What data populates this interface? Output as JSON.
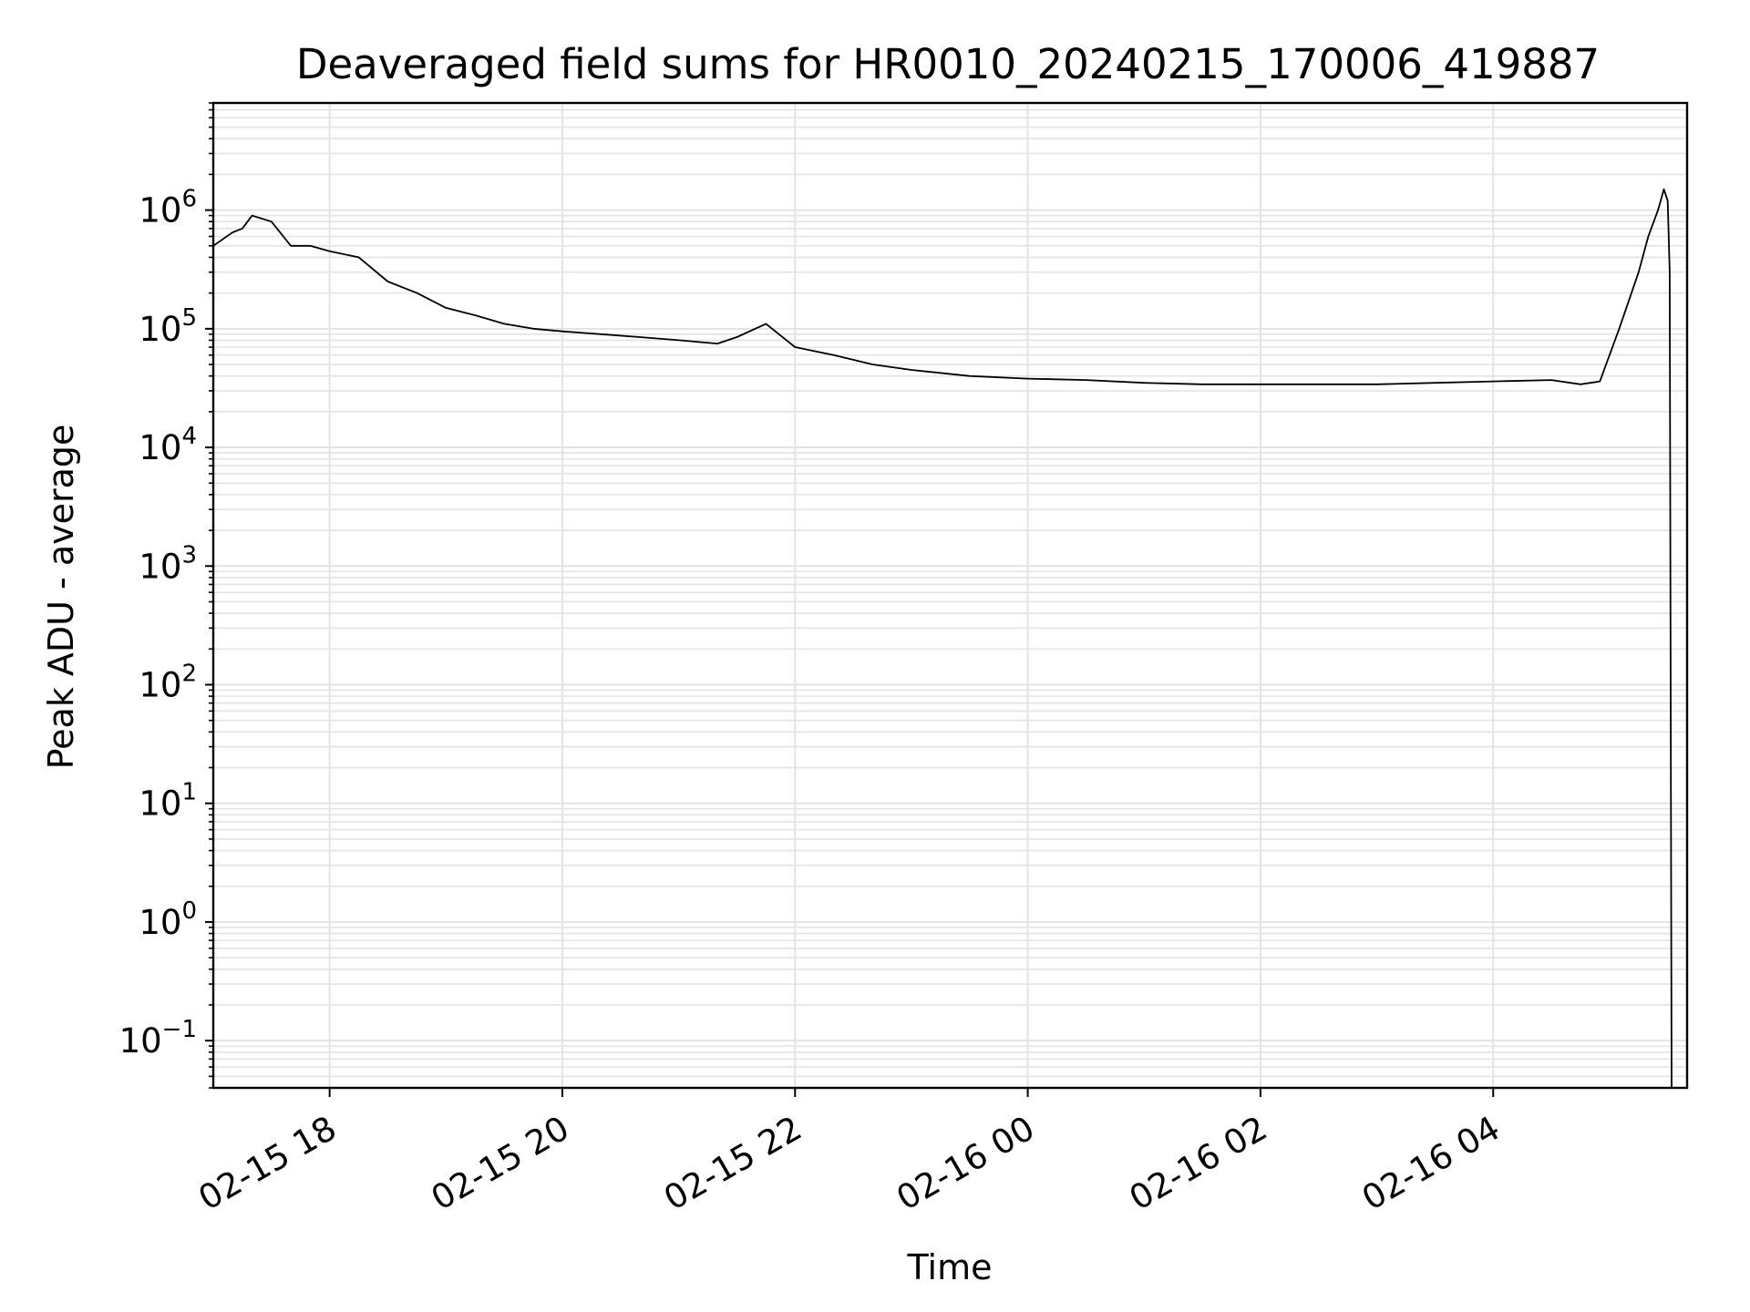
{
  "chart_data": {
    "type": "line",
    "title": "Deaveraged field sums for HR0010_20240215_170006_419887",
    "xlabel": "Time",
    "ylabel": "Peak ADU - average",
    "yscale": "log",
    "ylim": [
      0.04,
      8000000
    ],
    "xlim": [
      "2024-02-15 17:00",
      "2024-02-16 05:40"
    ],
    "grid": true,
    "line_color": "#000000",
    "grid_color": "#e3e3e3",
    "x_ticks": [
      {
        "at": "2024-02-15 18:00",
        "label": "02-15 18"
      },
      {
        "at": "2024-02-15 20:00",
        "label": "02-15 20"
      },
      {
        "at": "2024-02-15 22:00",
        "label": "02-15 22"
      },
      {
        "at": "2024-02-16 00:00",
        "label": "02-16 00"
      },
      {
        "at": "2024-02-16 02:00",
        "label": "02-16 02"
      },
      {
        "at": "2024-02-16 04:00",
        "label": "02-16 04"
      }
    ],
    "y_ticks": [
      {
        "exp": -1,
        "base": "10",
        "sup": "−1"
      },
      {
        "exp": 0,
        "base": "10",
        "sup": "0"
      },
      {
        "exp": 1,
        "base": "10",
        "sup": "1"
      },
      {
        "exp": 2,
        "base": "10",
        "sup": "2"
      },
      {
        "exp": 3,
        "base": "10",
        "sup": "3"
      },
      {
        "exp": 4,
        "base": "10",
        "sup": "4"
      },
      {
        "exp": 5,
        "base": "10",
        "sup": "5"
      },
      {
        "exp": 6,
        "base": "10",
        "sup": "6"
      }
    ],
    "series": [
      {
        "x": [
          "2024-02-15 17:00",
          "2024-02-15 17:10",
          "2024-02-15 17:15",
          "2024-02-15 17:20",
          "2024-02-15 17:30",
          "2024-02-15 17:40",
          "2024-02-15 17:50",
          "2024-02-15 18:00",
          "2024-02-15 18:15",
          "2024-02-15 18:30",
          "2024-02-15 18:45",
          "2024-02-15 19:00",
          "2024-02-15 19:15",
          "2024-02-15 19:30",
          "2024-02-15 19:45",
          "2024-02-15 20:00",
          "2024-02-15 20:20",
          "2024-02-15 20:40",
          "2024-02-15 21:00",
          "2024-02-15 21:20",
          "2024-02-15 21:30",
          "2024-02-15 21:45",
          "2024-02-15 22:00",
          "2024-02-15 22:20",
          "2024-02-15 22:40",
          "2024-02-15 23:00",
          "2024-02-15 23:30",
          "2024-02-16 00:00",
          "2024-02-16 00:30",
          "2024-02-16 01:00",
          "2024-02-16 01:30",
          "2024-02-16 02:00",
          "2024-02-16 02:30",
          "2024-02-16 03:00",
          "2024-02-16 03:30",
          "2024-02-16 04:00",
          "2024-02-16 04:30",
          "2024-02-16 04:45",
          "2024-02-16 04:55",
          "2024-02-16 05:05",
          "2024-02-16 05:15",
          "2024-02-16 05:20",
          "2024-02-16 05:25",
          "2024-02-16 05:28",
          "2024-02-16 05:30",
          "2024-02-16 05:31",
          "2024-02-16 05:32"
        ],
        "y": [
          500000,
          650000,
          700000,
          900000,
          800000,
          500000,
          500000,
          450000,
          400000,
          250000,
          200000,
          150000,
          130000,
          110000,
          100000,
          95000,
          90000,
          85000,
          80000,
          75000,
          85000,
          110000,
          70000,
          60000,
          50000,
          45000,
          40000,
          38000,
          37000,
          35000,
          34000,
          34000,
          34000,
          34000,
          35000,
          36000,
          37000,
          34000,
          36000,
          100000,
          300000,
          600000,
          1000000,
          1500000,
          1200000,
          300000,
          0.04
        ]
      }
    ]
  }
}
